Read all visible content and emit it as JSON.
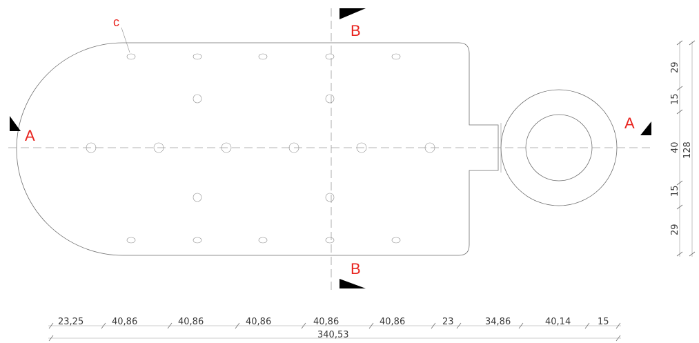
{
  "section_markers": {
    "a_left": "A",
    "a_right": "A",
    "b_top": "B",
    "b_bottom": "B"
  },
  "callout_label": "c",
  "horizontal_dimensions": {
    "segments": [
      "23,25",
      "40,86",
      "40,86",
      "40,86",
      "40,86",
      "40,86",
      "23",
      "34,86",
      "40,14",
      "15"
    ],
    "total": "340,53"
  },
  "vertical_dimensions": {
    "segments": [
      "29",
      "15",
      "40",
      "15",
      "29"
    ],
    "total": "128"
  },
  "colors": {
    "label_red": "#e8231e",
    "outline_grey": "#6e6e6e",
    "marker_black": "#000000"
  }
}
